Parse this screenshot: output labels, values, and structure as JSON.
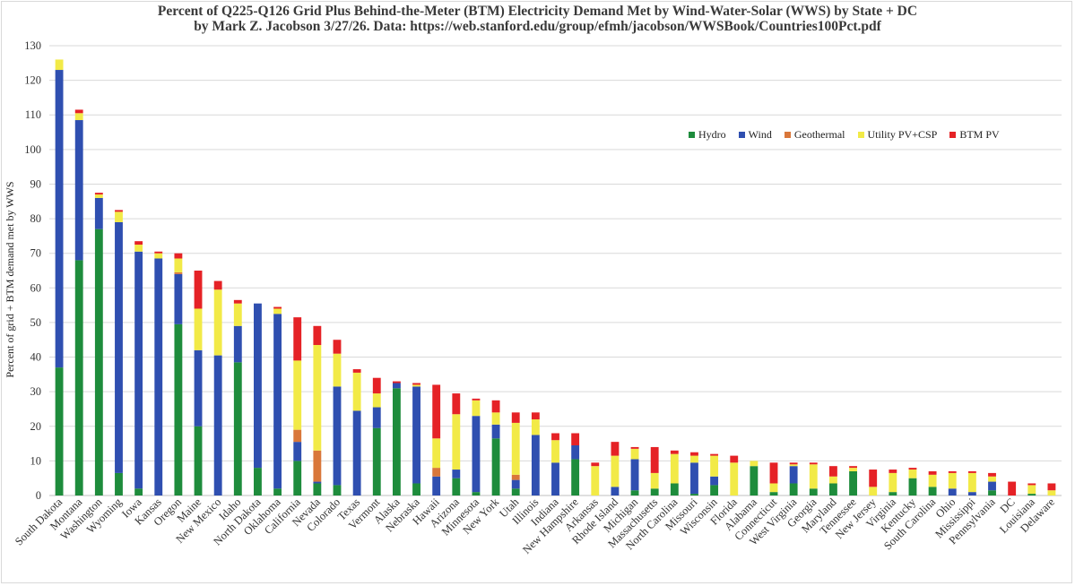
{
  "title_line1": "Percent of Q225-Q126 Grid Plus Behind-the-Meter (BTM) Electricity Demand Met by Wind-Water-Solar (WWS) by State + DC",
  "title_line2": "by Mark Z. Jacobson 3/27/26. Data: https://web.stanford.edu/group/efmh/jacobson/WWSBook/Countries100Pct.pdf",
  "colors": {
    "hydro": "#1e8c3c",
    "wind": "#2f4fb0",
    "geothermal": "#d9773a",
    "utility_pv_csp": "#f2ea47",
    "btm_pv": "#e52226",
    "grid": "#d9d9d9",
    "axis_text": "#333333"
  },
  "chart_data": {
    "type": "bar",
    "stacked": true,
    "title": "Percent of Q225-Q126 Grid Plus Behind-the-Meter (BTM) Electricity Demand Met by Wind-Water-Solar (WWS) by State + DC",
    "subtitle": "by Mark Z. Jacobson 3/27/26. Data: https://web.stanford.edu/group/efmh/jacobson/WWSBook/Countries100Pct.pdf",
    "xlabel": "",
    "ylabel": "Percent of grid + BTM demand met by WWS",
    "ylim": [
      0,
      130
    ],
    "yticks": [
      0,
      10,
      20,
      30,
      40,
      50,
      60,
      70,
      80,
      90,
      100,
      110,
      120,
      130
    ],
    "grid": true,
    "legend_position": "upper-right",
    "categories": [
      "South Dakota",
      "Montana",
      "Washington",
      "Wyoming",
      "Iowa",
      "Kansas",
      "Oregon",
      "Maine",
      "New Mexico",
      "Idaho",
      "North Dakota",
      "Oklahoma",
      "California",
      "Nevada",
      "Colorado",
      "Texas",
      "Vermont",
      "Alaska",
      "Nebraska",
      "Hawaii",
      "Arizona",
      "Minnesota",
      "New York",
      "Utah",
      "Illinois",
      "Indiana",
      "New Hampshire",
      "Arkansas",
      "Rhode Island",
      "Michigan",
      "Massachusetts",
      "North Carolina",
      "Missouri",
      "Wisconsin",
      "Florida",
      "Alabama",
      "Connecticut",
      "West Virginia",
      "Georgia",
      "Maryland",
      "Tennessee",
      "New Jersey",
      "Virginia",
      "Kentucky",
      "South Carolina",
      "Ohio",
      "Mississippi",
      "Pennsylvania",
      "DC",
      "Louisiana",
      "Delaware"
    ],
    "series": [
      {
        "name": "Hydro",
        "color_key": "hydro",
        "values": [
          37,
          68,
          77,
          6.5,
          2,
          0,
          49.5,
          20,
          0,
          38.5,
          8,
          2,
          10,
          3.5,
          3,
          0,
          19.5,
          31,
          3.5,
          0,
          5,
          1,
          16.5,
          2,
          0,
          0,
          10.5,
          0,
          0,
          1.5,
          2,
          3.5,
          0.5,
          3,
          0,
          8.5,
          1,
          3.5,
          2,
          3.5,
          7,
          0,
          1,
          5,
          2.5,
          0,
          0,
          1.5,
          0,
          0.5,
          0
        ]
      },
      {
        "name": "Wind",
        "color_key": "wind",
        "values": [
          86,
          40.5,
          9,
          72.5,
          68.5,
          68.5,
          14.5,
          22,
          40.5,
          10.5,
          47.5,
          50.5,
          5.5,
          0.5,
          28.5,
          24.5,
          6,
          1.5,
          28,
          5.5,
          2.5,
          22,
          4,
          2.5,
          17.5,
          9.5,
          4,
          0,
          2.5,
          9,
          0,
          0,
          9,
          2.5,
          0,
          0,
          0,
          5,
          0,
          0,
          0,
          0,
          0,
          0,
          0,
          2,
          1,
          2.5,
          0,
          0,
          0
        ]
      },
      {
        "name": "Geothermal",
        "color_key": "geothermal",
        "values": [
          0,
          0,
          0,
          0,
          0,
          0,
          0.5,
          0,
          0,
          0,
          0,
          0,
          3.5,
          9,
          0,
          0,
          0,
          0,
          0,
          2.5,
          0,
          0,
          0,
          1.5,
          0,
          0,
          0,
          0,
          0,
          0,
          0,
          0,
          0,
          0,
          0,
          0,
          0,
          0,
          0,
          0,
          0,
          0,
          0,
          0,
          0,
          0,
          0,
          0,
          0,
          0,
          0
        ]
      },
      {
        "name": "Utility PV+CSP",
        "color_key": "utility_pv_csp",
        "values": [
          3,
          2,
          1,
          3,
          2,
          1.5,
          4,
          12,
          19,
          6.5,
          0,
          1.5,
          20,
          30.5,
          9.5,
          11,
          4,
          0,
          0.5,
          8.5,
          16,
          4.5,
          3.5,
          15,
          4.5,
          6.5,
          0,
          8.5,
          9,
          3,
          4.5,
          8.5,
          2,
          6,
          9.5,
          1.5,
          2.5,
          0.5,
          7,
          2,
          1,
          2.5,
          5.5,
          2.5,
          3.5,
          4.5,
          5.5,
          1.5,
          0,
          2.5,
          1.5
        ]
      },
      {
        "name": "BTM PV",
        "color_key": "btm_pv",
        "values": [
          0,
          1,
          0.5,
          0.5,
          1,
          0.5,
          1.5,
          11,
          2.5,
          1,
          0,
          0.5,
          12.5,
          5.5,
          4,
          1,
          4.5,
          0.5,
          0.5,
          15.5,
          6,
          0.5,
          3.5,
          3,
          2,
          2,
          3.5,
          1,
          4,
          0.5,
          7.5,
          1,
          1,
          0.5,
          2,
          0,
          6,
          0.5,
          0.5,
          3,
          0.5,
          5,
          1,
          0.5,
          1,
          0.5,
          0.5,
          1,
          4,
          0.5,
          2
        ]
      }
    ]
  }
}
